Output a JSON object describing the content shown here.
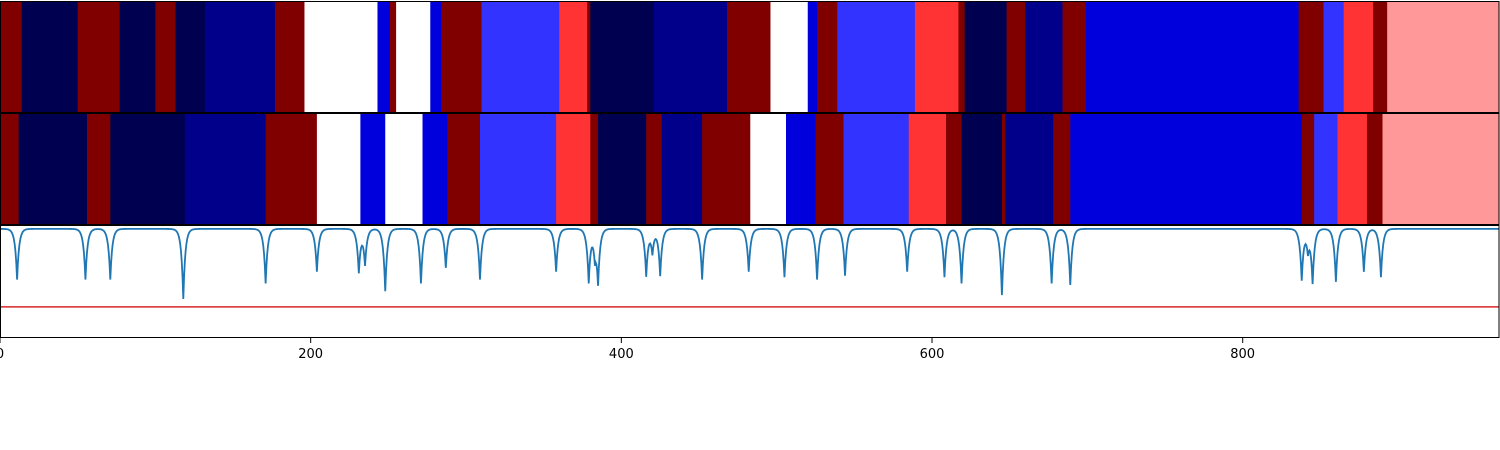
{
  "chart_data": {
    "type": "heatmap",
    "title": "",
    "xlabel": "",
    "ylabel": "",
    "xlim": [
      0,
      965
    ],
    "xticks": [
      0,
      200,
      400,
      600,
      800
    ],
    "xtick_labels": [
      "0",
      "200",
      "400",
      "600",
      "800"
    ],
    "grid": false,
    "legend": "none",
    "colors": {
      "c0": "#000050",
      "c1": "#00008b",
      "c2": "#0000dd",
      "c3": "#3333ff",
      "c4": "#ffffff",
      "c5": "#ff9999",
      "c6": "#ff3333",
      "c7": "#800000",
      "line": "#1f77b4",
      "threshold": "#d62728"
    },
    "tracks": [
      {
        "segments": [
          {
            "start": 0,
            "end": 14,
            "level": 7
          },
          {
            "start": 14,
            "end": 50,
            "level": 0
          },
          {
            "start": 50,
            "end": 77,
            "level": 7
          },
          {
            "start": 77,
            "end": 100,
            "level": 0
          },
          {
            "start": 100,
            "end": 113,
            "level": 7
          },
          {
            "start": 113,
            "end": 132,
            "level": 0
          },
          {
            "start": 132,
            "end": 177,
            "level": 1
          },
          {
            "start": 177,
            "end": 196,
            "level": 7
          },
          {
            "start": 196,
            "end": 243,
            "level": 4
          },
          {
            "start": 243,
            "end": 251,
            "level": 2
          },
          {
            "start": 251,
            "end": 255,
            "level": 7
          },
          {
            "start": 255,
            "end": 277,
            "level": 4
          },
          {
            "start": 277,
            "end": 284,
            "level": 2
          },
          {
            "start": 284,
            "end": 310,
            "level": 7
          },
          {
            "start": 310,
            "end": 360,
            "level": 3
          },
          {
            "start": 360,
            "end": 378,
            "level": 6
          },
          {
            "start": 378,
            "end": 380,
            "level": 7
          },
          {
            "start": 380,
            "end": 421,
            "level": 0
          },
          {
            "start": 421,
            "end": 468,
            "level": 1
          },
          {
            "start": 468,
            "end": 496,
            "level": 7
          },
          {
            "start": 496,
            "end": 520,
            "level": 4
          },
          {
            "start": 520,
            "end": 526,
            "level": 2
          },
          {
            "start": 526,
            "end": 539,
            "level": 7
          },
          {
            "start": 539,
            "end": 589,
            "level": 3
          },
          {
            "start": 589,
            "end": 617,
            "level": 6
          },
          {
            "start": 617,
            "end": 621,
            "level": 7
          },
          {
            "start": 621,
            "end": 648,
            "level": 0
          },
          {
            "start": 648,
            "end": 660,
            "level": 7
          },
          {
            "start": 660,
            "end": 684,
            "level": 1
          },
          {
            "start": 684,
            "end": 699,
            "level": 7
          },
          {
            "start": 699,
            "end": 836,
            "level": 2
          },
          {
            "start": 836,
            "end": 852,
            "level": 7
          },
          {
            "start": 852,
            "end": 865,
            "level": 3
          },
          {
            "start": 865,
            "end": 884,
            "level": 6
          },
          {
            "start": 884,
            "end": 893,
            "level": 7
          },
          {
            "start": 893,
            "end": 965,
            "level": 5
          }
        ]
      },
      {
        "segments": [
          {
            "start": 0,
            "end": 12,
            "level": 7
          },
          {
            "start": 12,
            "end": 56,
            "level": 0
          },
          {
            "start": 56,
            "end": 71,
            "level": 7
          },
          {
            "start": 71,
            "end": 119,
            "level": 0
          },
          {
            "start": 119,
            "end": 171,
            "level": 1
          },
          {
            "start": 171,
            "end": 204,
            "level": 7
          },
          {
            "start": 204,
            "end": 232,
            "level": 4
          },
          {
            "start": 232,
            "end": 248,
            "level": 2
          },
          {
            "start": 248,
            "end": 272,
            "level": 4
          },
          {
            "start": 272,
            "end": 288,
            "level": 2
          },
          {
            "start": 288,
            "end": 309,
            "level": 7
          },
          {
            "start": 309,
            "end": 358,
            "level": 3
          },
          {
            "start": 358,
            "end": 380,
            "level": 6
          },
          {
            "start": 380,
            "end": 385,
            "level": 7
          },
          {
            "start": 385,
            "end": 416,
            "level": 0
          },
          {
            "start": 416,
            "end": 426,
            "level": 7
          },
          {
            "start": 426,
            "end": 452,
            "level": 1
          },
          {
            "start": 452,
            "end": 483,
            "level": 7
          },
          {
            "start": 483,
            "end": 506,
            "level": 4
          },
          {
            "start": 506,
            "end": 525,
            "level": 2
          },
          {
            "start": 525,
            "end": 543,
            "level": 7
          },
          {
            "start": 543,
            "end": 585,
            "level": 3
          },
          {
            "start": 585,
            "end": 609,
            "level": 6
          },
          {
            "start": 609,
            "end": 619,
            "level": 7
          },
          {
            "start": 619,
            "end": 645,
            "level": 0
          },
          {
            "start": 645,
            "end": 647,
            "level": 7
          },
          {
            "start": 647,
            "end": 678,
            "level": 1
          },
          {
            "start": 678,
            "end": 689,
            "level": 7
          },
          {
            "start": 689,
            "end": 838,
            "level": 2
          },
          {
            "start": 838,
            "end": 846,
            "level": 7
          },
          {
            "start": 846,
            "end": 861,
            "level": 3
          },
          {
            "start": 861,
            "end": 880,
            "level": 6
          },
          {
            "start": 880,
            "end": 890,
            "level": 7
          },
          {
            "start": 890,
            "end": 965,
            "level": 5
          }
        ]
      }
    ],
    "line_series": {
      "baseline": 0,
      "threshold": -1,
      "ylim": [
        -1.4,
        0.05
      ],
      "dips": [
        {
          "x": 11,
          "depth": -0.65
        },
        {
          "x": 55,
          "depth": -0.65
        },
        {
          "x": 71,
          "depth": -0.65
        },
        {
          "x": 118,
          "depth": -0.9
        },
        {
          "x": 171,
          "depth": -0.7
        },
        {
          "x": 204,
          "depth": -0.55
        },
        {
          "x": 231,
          "depth": -0.55
        },
        {
          "x": 235,
          "depth": -0.45
        },
        {
          "x": 248,
          "depth": -0.8
        },
        {
          "x": 271,
          "depth": -0.7
        },
        {
          "x": 287,
          "depth": -0.5
        },
        {
          "x": 309,
          "depth": -0.65
        },
        {
          "x": 358,
          "depth": -0.55
        },
        {
          "x": 379,
          "depth": -0.68
        },
        {
          "x": 383,
          "depth": -0.3
        },
        {
          "x": 385,
          "depth": -0.66
        },
        {
          "x": 416,
          "depth": -0.6
        },
        {
          "x": 420,
          "depth": -0.3
        },
        {
          "x": 425,
          "depth": -0.6
        },
        {
          "x": 452,
          "depth": -0.65
        },
        {
          "x": 482,
          "depth": -0.55
        },
        {
          "x": 505,
          "depth": -0.62
        },
        {
          "x": 526,
          "depth": -0.65
        },
        {
          "x": 544,
          "depth": -0.6
        },
        {
          "x": 584,
          "depth": -0.55
        },
        {
          "x": 608,
          "depth": -0.62
        },
        {
          "x": 619,
          "depth": -0.7
        },
        {
          "x": 645,
          "depth": -0.85
        },
        {
          "x": 677,
          "depth": -0.7
        },
        {
          "x": 689,
          "depth": -0.72
        },
        {
          "x": 838,
          "depth": -0.65
        },
        {
          "x": 842,
          "depth": -0.25
        },
        {
          "x": 845,
          "depth": -0.68
        },
        {
          "x": 860,
          "depth": -0.68
        },
        {
          "x": 878,
          "depth": -0.55
        },
        {
          "x": 889,
          "depth": -0.62
        }
      ]
    }
  }
}
